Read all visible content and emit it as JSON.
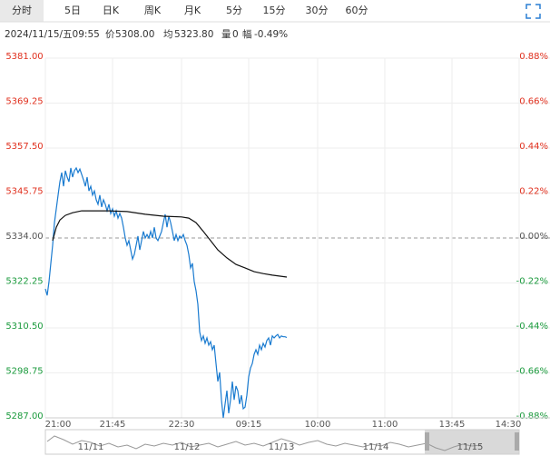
{
  "tabs": [
    "分时",
    "5日",
    "日K",
    "周K",
    "月K",
    "5分",
    "15分",
    "30分",
    "60分"
  ],
  "info": {
    "time": "2024/11/15/五09:55",
    "price_label": "价",
    "price": "5308.00",
    "avg_label": "均",
    "avg": "5323.80",
    "volume_label": "量",
    "volume": "0",
    "range_label": "幅",
    "range": "-0.49%"
  },
  "chart_data": {
    "type": "line",
    "ylim": [
      5287,
      5381
    ],
    "yticks": [
      {
        "value": 5381,
        "label": "5381.00"
      },
      {
        "value": 5369.25,
        "label": "5369.25"
      },
      {
        "value": 5357.5,
        "label": "5357.50"
      },
      {
        "value": 5345.75,
        "label": "5345.75"
      },
      {
        "value": 5334,
        "label": "5334.00"
      },
      {
        "value": 5322.25,
        "label": "5322.25"
      },
      {
        "value": 5310.5,
        "label": "5310.50"
      },
      {
        "value": 5298.75,
        "label": "5298.75"
      },
      {
        "value": 5287,
        "label": "5287.00"
      }
    ],
    "y2lim": [
      -0.88,
      0.88
    ],
    "y2ticks": [
      {
        "value": 0.88,
        "label": "0.88%"
      },
      {
        "value": 0.66,
        "label": "0.66%"
      },
      {
        "value": 0.44,
        "label": "0.44%"
      },
      {
        "value": 0.22,
        "label": "0.22%"
      },
      {
        "value": 0,
        "label": "0.00%"
      },
      {
        "value": -0.22,
        "label": "-0.22%"
      },
      {
        "value": -0.44,
        "label": "-0.44%"
      },
      {
        "value": -0.66,
        "label": "-0.66%"
      },
      {
        "value": -0.88,
        "label": "-0.88%"
      }
    ],
    "xlim": [
      0,
      261
    ],
    "xticks": [
      {
        "value": 0,
        "label": "21:00"
      },
      {
        "value": 37,
        "label": "21:45"
      },
      {
        "value": 75,
        "label": "22:30"
      },
      {
        "value": 112,
        "label": "09:15"
      },
      {
        "value": 150,
        "label": "10:00"
      },
      {
        "value": 187,
        "label": "11:00"
      },
      {
        "value": 224,
        "label": "13:45"
      },
      {
        "value": 261,
        "label": "14:30"
      }
    ],
    "up_color": "#e0301e",
    "down_color": "#1a9a3c",
    "flat_color": "#555555",
    "series": [
      {
        "name": "价",
        "color": "#1a7bd0",
        "x": [
          0,
          1,
          2,
          3,
          4,
          5,
          6,
          7,
          8,
          9,
          10,
          11,
          12,
          13,
          14,
          15,
          16,
          17,
          18,
          19,
          20,
          21,
          22,
          23,
          24,
          25,
          26,
          27,
          28,
          29,
          30,
          31,
          32,
          33,
          34,
          35,
          36,
          37,
          38,
          39,
          40,
          41,
          42,
          43,
          44,
          45,
          46,
          47,
          48,
          49,
          50,
          51,
          52,
          53,
          54,
          55,
          56,
          57,
          58,
          59,
          60,
          61,
          62,
          63,
          64,
          65,
          66,
          67,
          68,
          69,
          70,
          71,
          72,
          73,
          74,
          75,
          76,
          77,
          78,
          79,
          80,
          81,
          82,
          83,
          84,
          85,
          86,
          87,
          88,
          89,
          90,
          91,
          92,
          93,
          94,
          95,
          96,
          97,
          98,
          99,
          100,
          101,
          102,
          103,
          104,
          105,
          106,
          107,
          108,
          109,
          110,
          111,
          112,
          113,
          114,
          115,
          116,
          117,
          118,
          119,
          120,
          121,
          122,
          123,
          124,
          125,
          126,
          127,
          128,
          129,
          130,
          131,
          132,
          133
        ],
        "values": [
          5320.7,
          5319.0,
          5322.6,
          5327.4,
          5332.1,
          5338.0,
          5341.6,
          5345.2,
          5348.7,
          5351.1,
          5347.5,
          5351.6,
          5349.9,
          5348.7,
          5352.3,
          5349.9,
          5351.6,
          5352.3,
          5351.1,
          5352.0,
          5350.6,
          5349.2,
          5347.5,
          5349.9,
          5346.3,
          5347.5,
          5345.2,
          5346.3,
          5344.0,
          5342.8,
          5345.2,
          5342.1,
          5344.0,
          5342.8,
          5341.1,
          5342.8,
          5340.4,
          5341.6,
          5339.7,
          5341.1,
          5339.2,
          5340.4,
          5339.2,
          5336.8,
          5334.0,
          5332.1,
          5333.3,
          5330.9,
          5328.5,
          5329.7,
          5332.1,
          5334.5,
          5330.9,
          5333.3,
          5335.7,
          5334.0,
          5334.9,
          5334.0,
          5335.7,
          5334.0,
          5336.8,
          5334.0,
          5333.3,
          5334.5,
          5335.7,
          5338.0,
          5340.2,
          5336.8,
          5339.7,
          5338.0,
          5335.7,
          5333.3,
          5334.9,
          5333.3,
          5334.5,
          5334.0,
          5334.9,
          5333.3,
          5332.1,
          5329.7,
          5326.2,
          5327.4,
          5322.6,
          5320.2,
          5316.7,
          5309.5,
          5307.2,
          5308.4,
          5306.5,
          5307.9,
          5306.0,
          5306.9,
          5304.8,
          5306.0,
          5301.2,
          5296.5,
          5298.9,
          5291.7,
          5287.0,
          5290.6,
          5294.1,
          5288.2,
          5291.7,
          5296.5,
          5291.7,
          5295.3,
          5294.1,
          5290.6,
          5292.9,
          5289.4,
          5289.8,
          5292.9,
          5297.7,
          5300.0,
          5301.2,
          5303.6,
          5304.8,
          5303.6,
          5306.0,
          5304.8,
          5306.5,
          5305.5,
          5307.2,
          5307.9,
          5306.0,
          5308.4,
          5307.9,
          5308.4,
          5308.8,
          5307.9,
          5308.4,
          5308.2,
          5308.2,
          5308.0
        ]
      },
      {
        "name": "均",
        "color": "#111111",
        "x": [
          4,
          6,
          8,
          11,
          15,
          20,
          25,
          35,
          45,
          55,
          65,
          75,
          79,
          83,
          87,
          91,
          95,
          100,
          105,
          110,
          115,
          120,
          125,
          133
        ],
        "values": [
          5333.3,
          5336.8,
          5338.7,
          5339.9,
          5340.6,
          5341.1,
          5341.1,
          5341.1,
          5340.9,
          5340.2,
          5339.7,
          5339.5,
          5339.2,
          5338.0,
          5335.7,
          5333.3,
          5330.9,
          5328.8,
          5327.1,
          5326.2,
          5325.2,
          5324.7,
          5324.3,
          5323.8
        ]
      }
    ]
  },
  "navigator": {
    "labels": [
      "11/11",
      "11/12",
      "11/13",
      "11/14",
      "11/15"
    ]
  }
}
